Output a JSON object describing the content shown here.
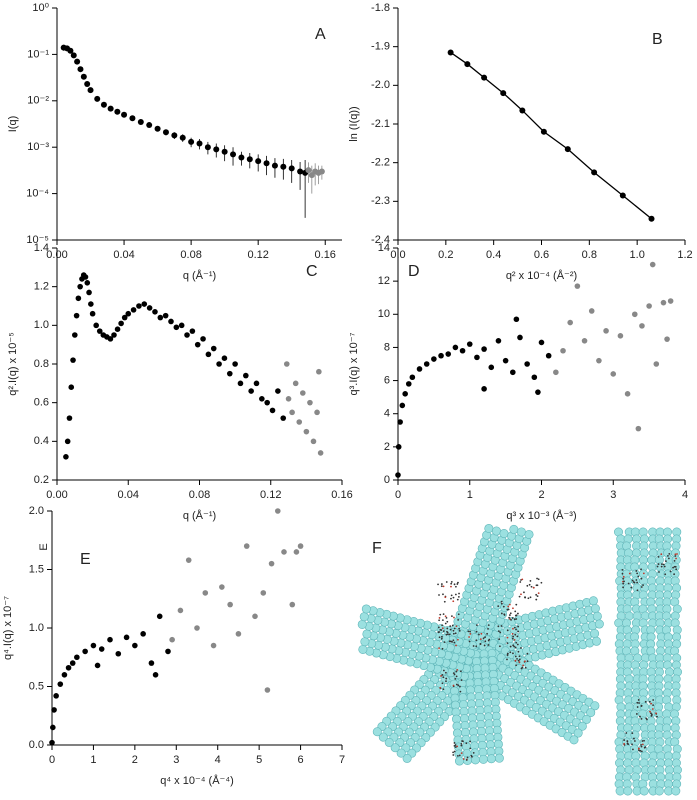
{
  "chart_data": [
    {
      "type": "scatter",
      "label": "A",
      "xlabel": "q (Å⁻¹)",
      "ylabel": "I(q)",
      "log_y": true,
      "xlim": [
        0,
        0.17
      ],
      "ylim": [
        1e-05,
        1
      ],
      "xticks": [
        {
          "value": 0,
          "label": "0.00"
        },
        0.04,
        0.08,
        0.12,
        0.16
      ],
      "yticks": [
        {
          "value": 1e-05,
          "label": "10⁻⁵"
        },
        {
          "value": 0.0001,
          "label": "10⁻⁴"
        },
        {
          "value": 0.001,
          "label": "10⁻³"
        },
        {
          "value": 0.01,
          "label": "10⁻²"
        },
        {
          "value": 0.1,
          "label": "10⁻¹"
        },
        {
          "value": 1,
          "label": "10⁰"
        }
      ],
      "series": [
        {
          "color": "#000000",
          "x": [
            0.004,
            0.006,
            0.008,
            0.01,
            0.012,
            0.014,
            0.016,
            0.018,
            0.02,
            0.024,
            0.028,
            0.032,
            0.036,
            0.04,
            0.045,
            0.05,
            0.055,
            0.06,
            0.065,
            0.07,
            0.075,
            0.08,
            0.085,
            0.09,
            0.095,
            0.1,
            0.105,
            0.11,
            0.115,
            0.12,
            0.125,
            0.13,
            0.135,
            0.14,
            0.145,
            0.148
          ],
          "values": [
            0.14,
            0.135,
            0.12,
            0.095,
            0.07,
            0.048,
            0.033,
            0.023,
            0.017,
            0.011,
            0.0082,
            0.0068,
            0.0058,
            0.005,
            0.0042,
            0.0035,
            0.003,
            0.0025,
            0.0021,
            0.0018,
            0.0016,
            0.0013,
            0.0012,
            0.001,
            0.0009,
            0.0008,
            0.0007,
            0.0006,
            0.00055,
            0.0005,
            0.00045,
            0.0004,
            0.00038,
            0.00035,
            0.0003,
            0.00028
          ],
          "errors": [
            0.02,
            0.015,
            0.01,
            0.006,
            0.004,
            0.002,
            0.0015,
            0.001,
            0.0008,
            0.0005,
            0.0004,
            0.0003,
            0.0003,
            0.0003,
            0.0003,
            0.0003,
            0.0003,
            0.0003,
            0.0003,
            0.0003,
            0.0003,
            0.0003,
            0.0003,
            0.0003,
            0.0003,
            0.0003,
            0.0003,
            0.0002,
            0.0002,
            0.0002,
            0.0002,
            0.00018,
            0.00018,
            0.00018,
            0.00018,
            0.00025
          ]
        },
        {
          "color": "#888888",
          "x": [
            0.15,
            0.152,
            0.154,
            0.156,
            0.158
          ],
          "values": [
            0.00032,
            0.00025,
            0.0003,
            0.00028,
            0.0003
          ],
          "errors": [
            0.00015,
            0.00015,
            0.00015,
            0.00012,
            0.0001
          ]
        }
      ]
    },
    {
      "type": "line",
      "label": "B",
      "xlabel": "q² x 10⁻⁴ (Å⁻²)",
      "ylabel": "ln (I(q))",
      "xlim": [
        0,
        1.2
      ],
      "ylim": [
        -2.4,
        -1.8
      ],
      "xticks": [
        {
          "value": 0,
          "label": "0.0"
        },
        0.2,
        0.4,
        0.6,
        0.8,
        {
          "value": 1,
          "label": "1.0"
        },
        1.2
      ],
      "yticks": [
        -2.4,
        -2.3,
        -2.2,
        -2.1,
        {
          "value": -2,
          "label": "-2.0"
        },
        -1.9,
        -1.8
      ],
      "series": [
        {
          "color": "#000000",
          "x": [
            0.22,
            0.29,
            0.36,
            0.44,
            0.52,
            0.61,
            0.71,
            0.82,
            0.94,
            1.06
          ],
          "values": [
            -1.915,
            -1.945,
            -1.98,
            -2.02,
            -2.065,
            -2.12,
            -2.165,
            -2.225,
            -2.285,
            -2.345
          ]
        }
      ]
    },
    {
      "type": "scatter",
      "label": "C",
      "xlabel": "q (Å⁻¹)",
      "ylabel": "q².I(q) x 10⁻⁵",
      "xlim": [
        0,
        0.16
      ],
      "ylim": [
        0.2,
        1.4
      ],
      "xticks": [
        {
          "value": 0,
          "label": "0.00"
        },
        0.04,
        0.08,
        0.12,
        0.16
      ],
      "yticks": [
        0.2,
        0.4,
        0.6,
        0.8,
        {
          "value": 1,
          "label": "1.0"
        },
        1.2,
        1.4
      ],
      "series": [
        {
          "color": "#000000",
          "x": [
            0.005,
            0.006,
            0.007,
            0.008,
            0.009,
            0.01,
            0.011,
            0.012,
            0.013,
            0.014,
            0.015,
            0.016,
            0.017,
            0.018,
            0.019,
            0.02,
            0.022,
            0.024,
            0.026,
            0.028,
            0.03,
            0.032,
            0.034,
            0.036,
            0.038,
            0.04,
            0.043,
            0.046,
            0.049,
            0.052,
            0.055,
            0.058,
            0.061,
            0.064,
            0.067,
            0.07,
            0.073,
            0.076,
            0.079,
            0.082,
            0.085,
            0.088,
            0.091,
            0.094,
            0.097,
            0.1,
            0.103,
            0.106,
            0.109,
            0.112,
            0.115,
            0.118,
            0.121,
            0.124,
            0.127
          ],
          "values": [
            0.32,
            0.4,
            0.52,
            0.68,
            0.82,
            0.95,
            1.05,
            1.14,
            1.2,
            1.24,
            1.26,
            1.25,
            1.22,
            1.17,
            1.11,
            1.06,
            1.0,
            0.97,
            0.95,
            0.94,
            0.93,
            0.95,
            0.98,
            1.01,
            1.04,
            1.06,
            1.08,
            1.1,
            1.11,
            1.09,
            1.07,
            1.04,
            1.05,
            1.02,
            0.99,
            1.0,
            0.95,
            0.97,
            0.9,
            0.93,
            0.85,
            0.88,
            0.8,
            0.83,
            0.75,
            0.8,
            0.7,
            0.74,
            0.66,
            0.7,
            0.62,
            0.6,
            0.56,
            0.66,
            0.52
          ]
        },
        {
          "color": "#888888",
          "x": [
            0.129,
            0.13,
            0.132,
            0.134,
            0.136,
            0.138,
            0.14,
            0.142,
            0.144,
            0.146,
            0.147,
            0.148
          ],
          "values": [
            0.8,
            0.62,
            0.55,
            0.7,
            0.5,
            0.65,
            0.45,
            0.6,
            0.4,
            0.55,
            0.76,
            0.34
          ]
        }
      ]
    },
    {
      "type": "scatter",
      "label": "D",
      "xlabel": "q³ x 10⁻³ (Å⁻³)",
      "ylabel": "q³.I(q) x 10⁻⁷",
      "xlim": [
        0,
        4
      ],
      "ylim": [
        0,
        14
      ],
      "xticks": [
        0,
        1,
        2,
        3,
        4
      ],
      "yticks": [
        0,
        2,
        4,
        6,
        8,
        10,
        12,
        14
      ],
      "series": [
        {
          "color": "#000000",
          "x": [
            0,
            0.01,
            0.03,
            0.06,
            0.1,
            0.15,
            0.2,
            0.3,
            0.4,
            0.5,
            0.6,
            0.7,
            0.8,
            0.9,
            1.0,
            1.1,
            1.2,
            1.3,
            1.4,
            1.5,
            1.6,
            1.7,
            1.8,
            1.9,
            2.0,
            2.1,
            1.65,
            1.2,
            1.95
          ],
          "values": [
            0.3,
            2,
            3.5,
            4.5,
            5.2,
            5.8,
            6.2,
            6.7,
            7,
            7.3,
            7.5,
            7.6,
            8,
            7.8,
            8.2,
            7.4,
            7.9,
            6.8,
            8.4,
            7.2,
            6.5,
            8.6,
            7.0,
            6.2,
            8.3,
            7.5,
            9.7,
            5.5,
            5.3
          ]
        },
        {
          "color": "#888888",
          "x": [
            2.2,
            2.3,
            2.4,
            2.5,
            2.6,
            2.7,
            2.8,
            2.9,
            3.0,
            3.1,
            3.2,
            3.3,
            3.35,
            3.4,
            3.5,
            3.55,
            3.6,
            3.7,
            3.8,
            3.75
          ],
          "values": [
            6.5,
            7.8,
            9.5,
            11.7,
            8.4,
            10.2,
            7.2,
            9.0,
            6.4,
            8.7,
            5.2,
            10.0,
            3.1,
            9.3,
            10.5,
            13.0,
            7.0,
            10.7,
            10.8,
            8.5
          ]
        }
      ]
    },
    {
      "type": "scatter",
      "label": "E",
      "annotation": "E",
      "xlabel": "q⁴ x 10⁻⁴ (Å⁻⁴)",
      "ylabel": "q⁴.I(q) x 10⁻⁷",
      "xlim": [
        0,
        7
      ],
      "ylim": [
        0,
        2
      ],
      "xticks": [
        0,
        1,
        2,
        3,
        4,
        5,
        6,
        7
      ],
      "yticks": [
        {
          "value": 0,
          "label": "0.0"
        },
        0.5,
        {
          "value": 1,
          "label": "1.0"
        },
        1.5,
        {
          "value": 2,
          "label": "2.0"
        }
      ],
      "series": [
        {
          "color": "#000000",
          "x": [
            0,
            0.02,
            0.05,
            0.1,
            0.2,
            0.3,
            0.4,
            0.5,
            0.6,
            0.8,
            1.0,
            1.2,
            1.4,
            1.6,
            1.8,
            2.0,
            2.2,
            2.4,
            2.6,
            2.8,
            1.1,
            2.5
          ],
          "values": [
            0.02,
            0.15,
            0.3,
            0.42,
            0.52,
            0.6,
            0.66,
            0.7,
            0.75,
            0.8,
            0.85,
            0.82,
            0.9,
            0.78,
            0.92,
            0.85,
            0.95,
            0.7,
            1.1,
            0.8,
            0.68,
            0.6
          ]
        },
        {
          "color": "#888888",
          "x": [
            2.9,
            3.1,
            3.3,
            3.5,
            3.7,
            3.9,
            4.1,
            4.3,
            4.5,
            4.7,
            4.9,
            5.1,
            5.2,
            5.3,
            5.45,
            5.6,
            5.8,
            5.9,
            6.0
          ],
          "values": [
            0.9,
            1.15,
            1.58,
            1.0,
            1.3,
            0.85,
            1.35,
            1.2,
            0.95,
            1.7,
            1.1,
            1.3,
            0.47,
            1.55,
            2.0,
            1.65,
            1.2,
            1.65,
            1.7
          ]
        }
      ]
    }
  ],
  "panel_f": {
    "label": "F"
  }
}
